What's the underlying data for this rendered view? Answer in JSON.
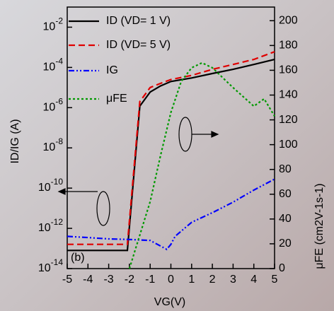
{
  "chart_data": {
    "type": "line",
    "x_label": "VG(V)",
    "y_label": "ID/IG (A)",
    "y2_label": "μFE (cm2V-1s-1)",
    "annotation": "(b)",
    "xlim": [
      -5,
      5
    ],
    "xticks": [
      -5,
      -4,
      -3,
      -2,
      -1,
      0,
      1,
      2,
      3,
      4,
      5
    ],
    "ylim": [
      1e-14,
      0.1
    ],
    "ylog": true,
    "yticks": [
      {
        "value": 1e-14,
        "label": "10-14"
      },
      {
        "value": 1e-12,
        "label": "10-12"
      },
      {
        "value": 1e-10,
        "label": "10-10"
      },
      {
        "value": 1e-08,
        "label": "10-8"
      },
      {
        "value": 1e-06,
        "label": "10-6"
      },
      {
        "value": 0.0001,
        "label": "10-4"
      },
      {
        "value": 0.01,
        "label": "10-2"
      }
    ],
    "y2lim": [
      0,
      211
    ],
    "y2ticks": [
      0,
      20,
      40,
      60,
      80,
      100,
      120,
      140,
      160,
      180,
      200
    ],
    "series": [
      {
        "name": "ID (VD= 1 V)",
        "color": "#000000",
        "dash": "",
        "x": [
          -5,
          -4,
          -3,
          -2.1,
          -1.5,
          -1,
          -0.5,
          0,
          1,
          2,
          3,
          4,
          5
        ],
        "values": [
          8e-14,
          8e-14,
          8e-14,
          8e-14,
          1.2e-06,
          6e-06,
          1.2e-05,
          2e-05,
          3e-05,
          5e-05,
          8e-05,
          0.00014,
          0.00025
        ]
      },
      {
        "name": "ID (VD= 5 V)",
        "color": "#e00000",
        "dash": "9 5",
        "x": [
          -5,
          -4,
          -3,
          -2.1,
          -1.5,
          -1,
          -0.5,
          0,
          1,
          2,
          3,
          4,
          5
        ],
        "values": [
          1.6e-13,
          1.6e-13,
          1.6e-13,
          1.6e-13,
          2e-06,
          1e-05,
          1.6e-05,
          2.5e-05,
          4e-05,
          8e-05,
          0.00014,
          0.00025,
          0.0006
        ]
      },
      {
        "name": "IG",
        "color": "#0000ff",
        "dash": "8 3 2 3 2 3",
        "x": [
          -5,
          -4,
          -3,
          -2,
          -1,
          -0.2,
          0,
          0.2,
          1,
          2,
          3,
          4,
          5
        ],
        "values": [
          4e-13,
          3.5e-13,
          3e-13,
          2.8e-13,
          2.5e-13,
          9e-14,
          1.6e-13,
          4e-13,
          2e-12,
          6e-12,
          2e-11,
          8e-11,
          2.8e-10
        ]
      },
      {
        "name": "μFE",
        "color": "#009900",
        "dash": "3 3",
        "axis": "y2",
        "x": [
          -2,
          -1,
          -0.5,
          0,
          0.5,
          1,
          1.5,
          2,
          3,
          4,
          4.5,
          5
        ],
        "values": [
          0,
          54,
          91,
          126,
          151,
          162,
          166,
          162,
          146,
          131,
          137,
          123
        ]
      }
    ]
  }
}
